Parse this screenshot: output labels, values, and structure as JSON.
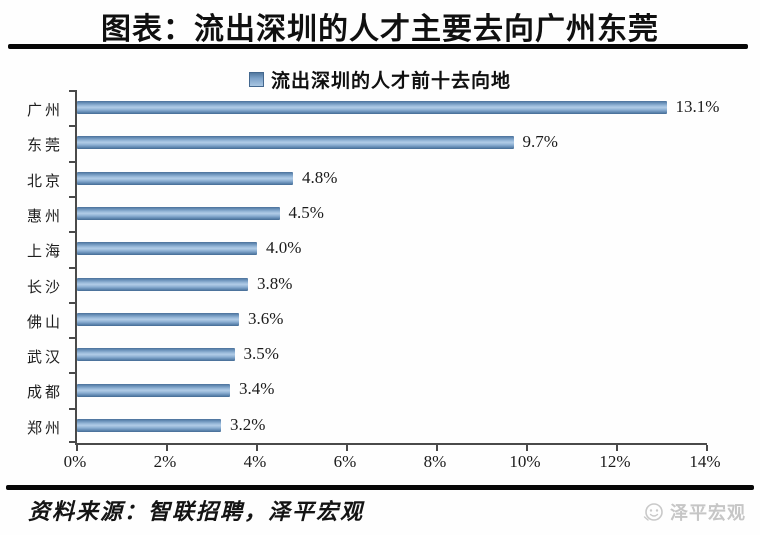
{
  "header": {
    "title": "图表：流出深圳的人才主要去向广州东莞"
  },
  "chart_data": {
    "type": "bar",
    "orientation": "horizontal",
    "title": "流出深圳的人才前十去向地",
    "legend": {
      "label": "流出深圳的人才前十去向地",
      "position": "top",
      "marker_color": "#6d95bd"
    },
    "categories": [
      "广州",
      "东莞",
      "北京",
      "惠州",
      "上海",
      "长沙",
      "佛山",
      "武汉",
      "成都",
      "郑州"
    ],
    "values": [
      13.1,
      9.7,
      4.8,
      4.5,
      4.0,
      3.8,
      3.6,
      3.5,
      3.4,
      3.2
    ],
    "value_labels": [
      "13.1%",
      "9.7%",
      "4.8%",
      "4.5%",
      "4.0%",
      "3.8%",
      "3.6%",
      "3.5%",
      "3.4%",
      "3.2%"
    ],
    "x_ticks": [
      "0%",
      "2%",
      "4%",
      "6%",
      "8%",
      "10%",
      "12%",
      "14%"
    ],
    "xlim": [
      0,
      14
    ],
    "grid": false,
    "bar_color": "#6d95bd"
  },
  "footer": {
    "source": "资料来源：智联招聘，泽平宏观",
    "logo_text": "泽平宏观"
  }
}
